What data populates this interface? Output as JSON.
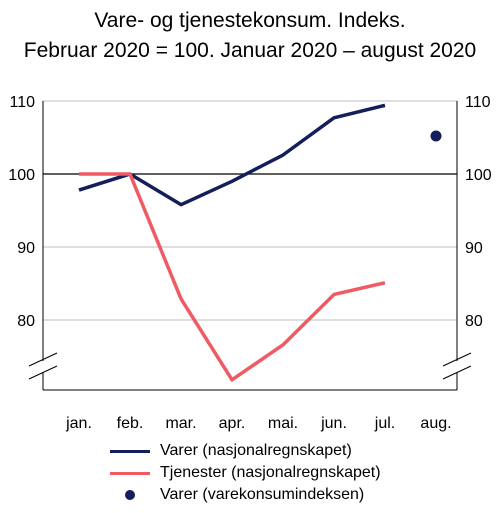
{
  "title_line1": "Vare- og tjenestekonsum. Indeks.",
  "title_line2": "Februar 2020 = 100. Januar 2020 – august 2020",
  "colors": {
    "varer": "#141e5a",
    "tjenester": "#ef5a64",
    "dot": "#141e5a",
    "axis": "#000000",
    "grid": "#bfbfbf"
  },
  "chart_data": {
    "type": "line",
    "title": "Vare- og tjenestekonsum. Indeks. Februar 2020 = 100. Januar 2020 – august 2020",
    "categories": [
      "jan.",
      "feb.",
      "mar.",
      "apr.",
      "mai.",
      "jun.",
      "jul.",
      "aug."
    ],
    "ylim": [
      70,
      110
    ],
    "yticks": [
      80,
      90,
      100,
      110
    ],
    "reference_line": 100,
    "grid": "horizontal",
    "axis_break": true,
    "right_axis_mirror": true,
    "series": [
      {
        "name": "Varer (nasjonalregnskapet)",
        "style": "line",
        "values": [
          97.8,
          100.0,
          95.8,
          99.0,
          102.6,
          107.7,
          109.4,
          null
        ]
      },
      {
        "name": "Tjenester (nasjonalregnskapet)",
        "style": "line",
        "values": [
          100.0,
          100.0,
          82.9,
          71.8,
          76.6,
          83.5,
          85.1,
          null
        ]
      },
      {
        "name": "Varer (varekonsumindeksen)",
        "style": "point",
        "values": [
          null,
          null,
          null,
          null,
          null,
          null,
          null,
          105.2
        ]
      }
    ],
    "legend_position": "bottom"
  },
  "legend": [
    {
      "label": "Varer (nasjonalregnskapet)",
      "kind": "line",
      "color_key": "varer"
    },
    {
      "label": "Tjenester (nasjonalregnskapet)",
      "kind": "line",
      "color_key": "tjenester"
    },
    {
      "label": "Varer (varekonsumindeksen)",
      "kind": "dot",
      "color_key": "dot"
    }
  ]
}
